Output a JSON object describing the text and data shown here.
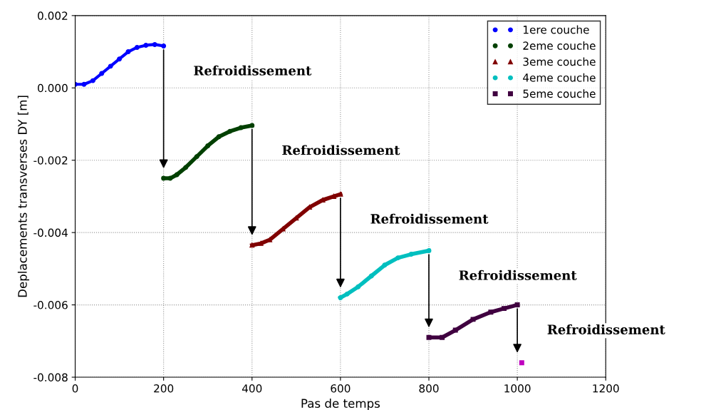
{
  "chart_data": {
    "type": "line",
    "xlabel": "Pas de temps",
    "ylabel": "Deplacements transverses DY [m]",
    "xlim": [
      0,
      1200
    ],
    "xticks": [
      0,
      200,
      400,
      600,
      800,
      1000,
      1200
    ],
    "ylim": [
      -0.008,
      0.002
    ],
    "yticks": [
      {
        "value": -0.008,
        "label": "-0.008"
      },
      {
        "value": -0.006,
        "label": "-0.006"
      },
      {
        "value": -0.004,
        "label": "-0.004"
      },
      {
        "value": -0.002,
        "label": "-0.002"
      },
      {
        "value": 0,
        "label": "0.000"
      },
      {
        "value": 0.002,
        "label": "0.002"
      }
    ],
    "grid": true,
    "legend": "top right",
    "line_style": "solid",
    "series": [
      {
        "name": "1ere couche",
        "color": "#0000ff",
        "marker": "circle",
        "x": [
          0,
          20,
          40,
          60,
          80,
          100,
          120,
          140,
          160,
          180,
          200
        ],
        "values": [
          0.0001,
          0.0001,
          0.0002,
          0.0004,
          0.0006,
          0.0008,
          0.001,
          0.00112,
          0.00118,
          0.0012,
          0.00116
        ]
      },
      {
        "name": "2eme couche",
        "color": "#004000",
        "marker": "circle",
        "x": [
          200,
          215,
          230,
          250,
          275,
          300,
          325,
          350,
          375,
          400
        ],
        "values": [
          -0.0025,
          -0.0025,
          -0.0024,
          -0.0022,
          -0.0019,
          -0.0016,
          -0.00135,
          -0.0012,
          -0.0011,
          -0.00104
        ]
      },
      {
        "name": "3eme couche",
        "color": "#800000",
        "marker": "triangle",
        "x": [
          400,
          420,
          440,
          470,
          500,
          530,
          560,
          585,
          600
        ],
        "values": [
          -0.00435,
          -0.0043,
          -0.0042,
          -0.0039,
          -0.0036,
          -0.0033,
          -0.0031,
          -0.003,
          -0.00294
        ]
      },
      {
        "name": "4eme couche",
        "color": "#00bfbf",
        "marker": "circle",
        "x": [
          600,
          615,
          640,
          670,
          700,
          730,
          760,
          800
        ],
        "values": [
          -0.0058,
          -0.0057,
          -0.0055,
          -0.0052,
          -0.0049,
          -0.0047,
          -0.0046,
          -0.0045
        ]
      },
      {
        "name": "5eme couche",
        "color": "#400040",
        "marker": "square",
        "x": [
          800,
          830,
          860,
          900,
          940,
          970,
          1000
        ],
        "values": [
          -0.0069,
          -0.0069,
          -0.0067,
          -0.0064,
          -0.0062,
          -0.0061,
          -0.006
        ]
      },
      {
        "type": "scatter",
        "color": "#bf00bf",
        "marker": "square",
        "x": [
          1010
        ],
        "values": [
          -0.0076
        ]
      }
    ],
    "annotations": [
      "Refroidissement",
      "Refroidissement",
      "Refroidissement",
      "Refroidissement",
      "Refroidissement"
    ]
  }
}
